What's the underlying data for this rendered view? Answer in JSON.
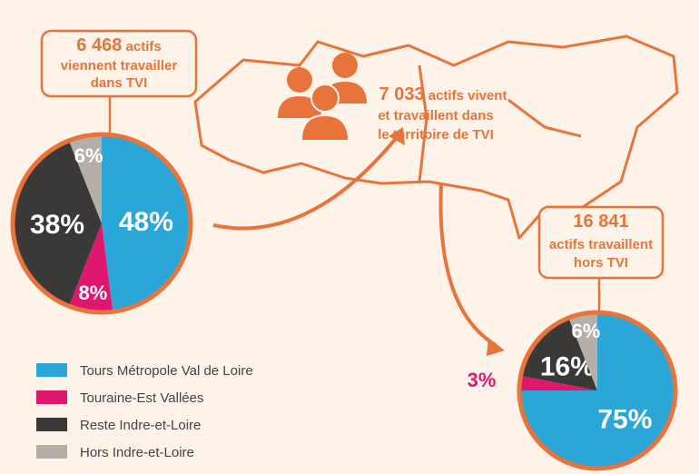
{
  "chart_data": [
    {
      "type": "pie",
      "annotation": {
        "number": "6 468",
        "lines": [
          "actifs",
          "viennent travailler",
          "dans TVI"
        ]
      },
      "categories": [
        "Tours Métropole Val de Loire",
        "Touraine-Est Vallées",
        "Reste Indre-et-Loire",
        "Hors Indre-et-Loire"
      ],
      "values": [
        48,
        8,
        38,
        6
      ],
      "value_labels": [
        "48%",
        "8%",
        "38%",
        "6%"
      ],
      "colors": [
        "#2aa6d9",
        "#e0176e",
        "#3b3938",
        "#b5afa8"
      ]
    },
    {
      "type": "pie",
      "annotation": {
        "number": "16 841",
        "lines": [
          "actifs travaillent",
          "hors TVI"
        ]
      },
      "values": [
        75,
        3,
        16,
        6
      ],
      "value_labels": [
        "75%",
        "3%",
        "16%",
        "6%"
      ],
      "colors": [
        "#2aa6d9",
        "#e0176e",
        "#3b3938",
        "#b5afa8"
      ]
    }
  ],
  "center_text": {
    "number": "7 033",
    "lines": [
      "actifs vivent",
      "et travaillent dans",
      "le territoire de TVI"
    ]
  }
}
